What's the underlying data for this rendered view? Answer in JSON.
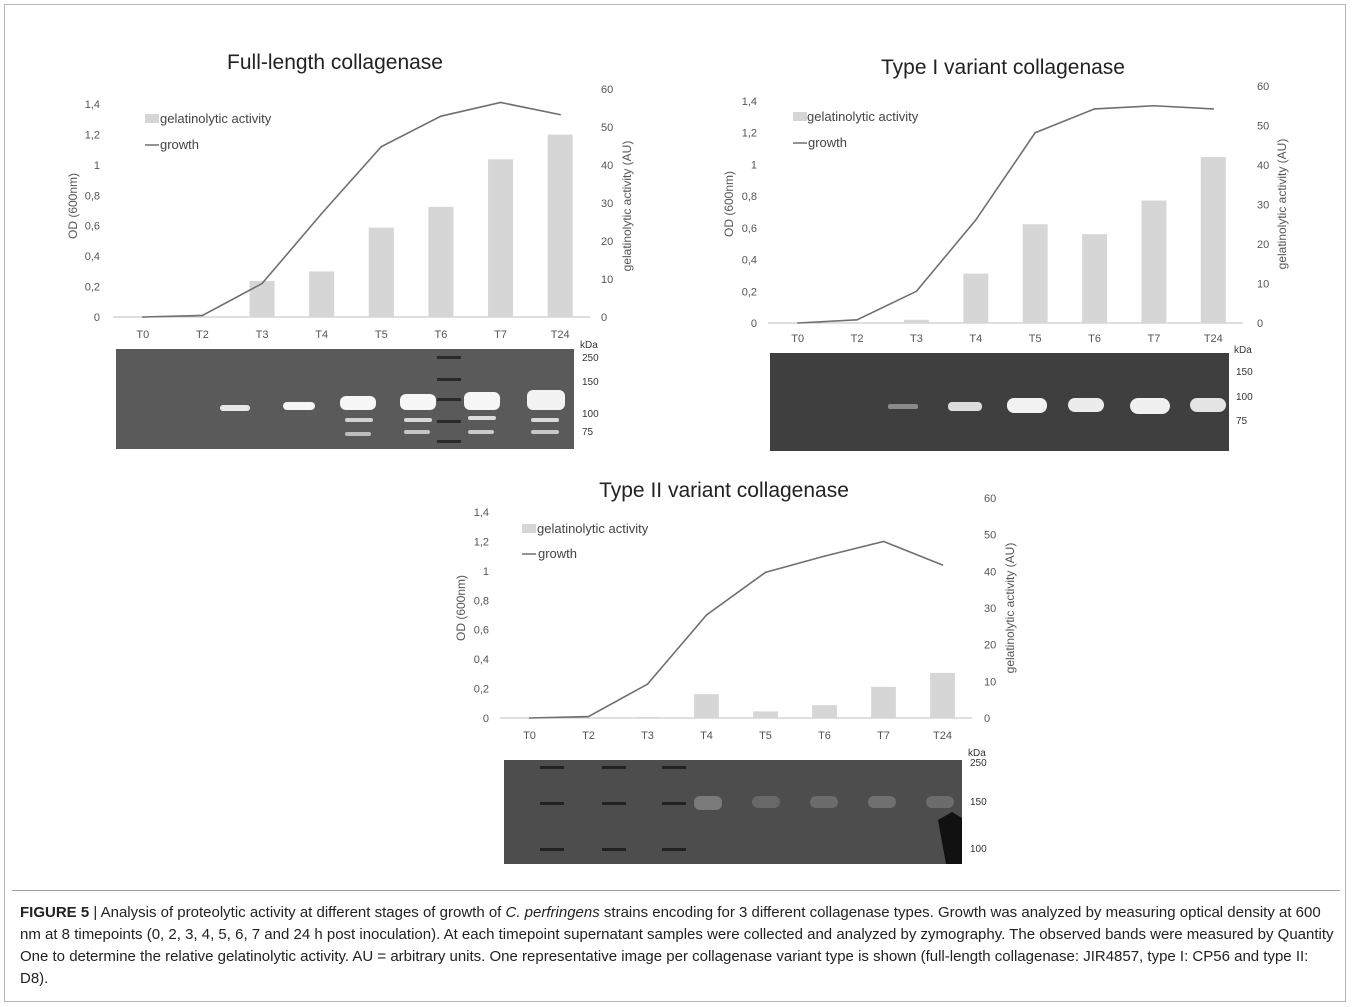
{
  "panels": [
    {
      "id": "full",
      "title": "Full-length collagenase",
      "legend": {
        "bar": "gelatinolytic activity",
        "line": "growth"
      },
      "kda_label": "kDa",
      "mw_markers": [
        "250",
        "150",
        "100",
        "75"
      ],
      "chart_data": {
        "type": "bar",
        "categories": [
          "T0",
          "T2",
          "T3",
          "T4",
          "T5",
          "T6",
          "T7",
          "T24"
        ],
        "series": [
          {
            "name": "gelatinolytic activity",
            "axis": "right",
            "values": [
              0,
              0,
              9.5,
              12,
              23.5,
              29,
              41.5,
              48
            ]
          },
          {
            "name": "growth",
            "axis": "left",
            "type": "line",
            "values": [
              0,
              0.01,
              0.22,
              0.68,
              1.12,
              1.32,
              1.41,
              1.33
            ]
          }
        ],
        "ylabel": "OD (600nm)",
        "y2label": "gelatinolytic activity (AU)",
        "ylim": [
          0,
          1.4
        ],
        "y2lim": [
          0,
          60
        ],
        "yticks": [
          "0",
          "0,2",
          "0,4",
          "0,6",
          "0,8",
          "1",
          "1,2",
          "1,4"
        ],
        "y2ticks": [
          "0",
          "10",
          "20",
          "30",
          "40",
          "50",
          "60"
        ]
      }
    },
    {
      "id": "type1",
      "title": "Type I variant collagenase",
      "legend": {
        "bar": "gelatinolytic activity",
        "line": "growth"
      },
      "kda_label": "kDa",
      "mw_markers": [
        "150",
        "100",
        "75"
      ],
      "chart_data": {
        "type": "bar",
        "categories": [
          "T0",
          "T2",
          "T3",
          "T4",
          "T5",
          "T6",
          "T7",
          "T24"
        ],
        "series": [
          {
            "name": "gelatinolytic activity",
            "axis": "right",
            "values": [
              0,
              0,
              0.8,
              12.5,
              25,
              22.5,
              31,
              42
            ]
          },
          {
            "name": "growth",
            "axis": "left",
            "type": "line",
            "values": [
              0,
              0.02,
              0.2,
              0.65,
              1.2,
              1.35,
              1.37,
              1.35
            ]
          }
        ],
        "ylabel": "OD (600nm)",
        "y2label": "gelatinolytic activity (AU)",
        "ylim": [
          0,
          1.4
        ],
        "y2lim": [
          0,
          60
        ],
        "yticks": [
          "0",
          "0,2",
          "0,4",
          "0,6",
          "0,8",
          "1",
          "1,2",
          "1,4"
        ],
        "y2ticks": [
          "0",
          "10",
          "20",
          "30",
          "40",
          "50",
          "60"
        ]
      }
    },
    {
      "id": "type2",
      "title": "Type II variant collagenase",
      "legend": {
        "bar": "gelatinolytic activity",
        "line": "growth"
      },
      "kda_label": "kDa",
      "mw_markers": [
        "250",
        "150",
        "100"
      ],
      "chart_data": {
        "type": "bar",
        "categories": [
          "T0",
          "T2",
          "T3",
          "T4",
          "T5",
          "T6",
          "T7",
          "T24"
        ],
        "series": [
          {
            "name": "gelatinolytic activity",
            "axis": "right",
            "values": [
              0,
              0,
              0.3,
              6.5,
              1.8,
              3.5,
              8.5,
              12.3
            ]
          },
          {
            "name": "growth",
            "axis": "left",
            "type": "line",
            "values": [
              0,
              0.01,
              0.23,
              0.7,
              0.99,
              1.1,
              1.2,
              1.04
            ]
          }
        ],
        "ylabel": "OD (600nm)",
        "y2label": "gelatinolytic activity (AU)",
        "ylim": [
          0,
          1.4
        ],
        "y2lim": [
          0,
          60
        ],
        "yticks": [
          "0",
          "0,2",
          "0,4",
          "0,6",
          "0,8",
          "1",
          "1,2",
          "1,4"
        ],
        "y2ticks": [
          "0",
          "10",
          "20",
          "30",
          "40",
          "50",
          "60"
        ]
      }
    }
  ],
  "caption": {
    "figure_label": "FIGURE 5",
    "separator": " | ",
    "text_before_species": "Analysis of proteolytic activity at different stages of growth of ",
    "species": "C. perfringens",
    "text_after_species": " strains encoding for 3 different collagenase types. Growth was analyzed by measuring optical density at 600 nm at 8 timepoints (0, 2, 3, 4, 5, 6, 7 and 24 h post inoculation). At each timepoint supernatant samples were collected and analyzed by zymography. The observed bands were measured by Quantity One to determine the relative gelatinolytic activity. AU = arbitrary units. One representative image per collagenase variant type is shown (full-length collagenase: JIR4857, type I: CP56 and type II: D8)."
  },
  "colors": {
    "bar": "#d6d6d6",
    "line": "#6f6f6f",
    "gel_bg": "#555555",
    "band": "#f2f2f2"
  }
}
